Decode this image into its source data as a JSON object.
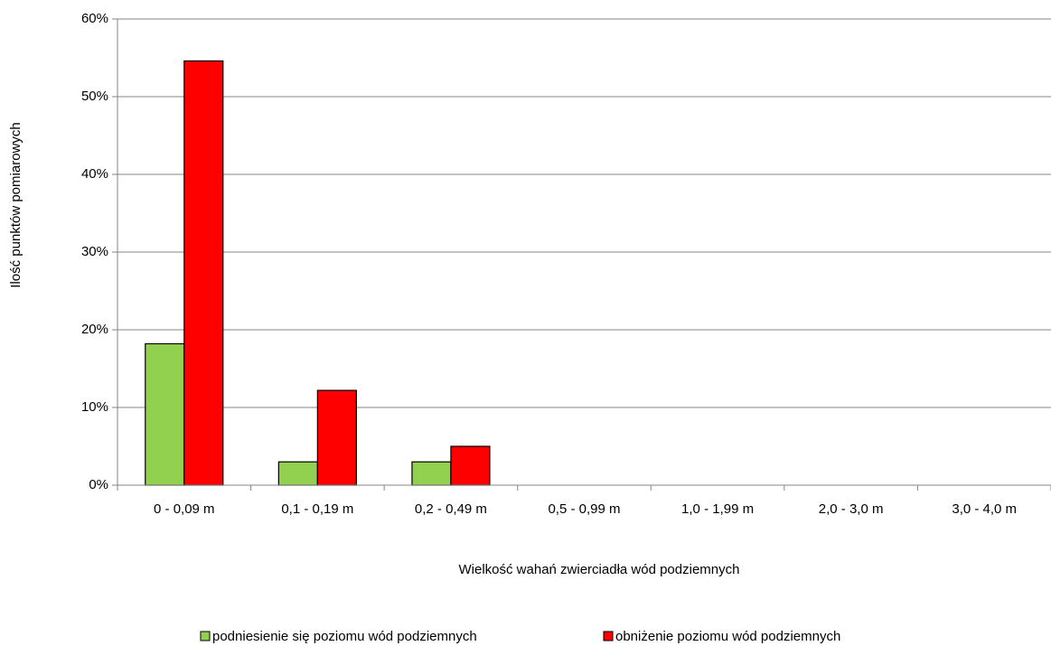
{
  "chart_data": {
    "type": "bar",
    "x_label": "Wielkość wahań zwierciadła wód podziemnych",
    "y_label": "Ilość  punktów pomiarowych",
    "categories": [
      "0 - 0,09 m",
      "0,1 - 0,19 m",
      "0,2 - 0,49 m",
      "0,5 - 0,99 m",
      "1,0 - 1,99 m",
      "2,0 - 3,0 m",
      "3,0 - 4,0 m"
    ],
    "series": [
      {
        "name": "podniesienie się poziomu wód podziemnych",
        "color": "#92d050",
        "values": [
          18.2,
          3,
          3,
          0,
          0,
          0,
          0
        ]
      },
      {
        "name": "obniżenie poziomu wód podziemnych",
        "color": "#ff0000",
        "values": [
          54.6,
          12.2,
          5,
          0,
          0,
          0,
          0
        ]
      }
    ],
    "ylim": [
      0,
      60
    ],
    "yticks": [
      {
        "value": 0,
        "label": "0%"
      },
      {
        "value": 10,
        "label": "10%"
      },
      {
        "value": 20,
        "label": "20%"
      },
      {
        "value": 30,
        "label": "30%"
      },
      {
        "value": 40,
        "label": "40%"
      },
      {
        "value": 50,
        "label": "50%"
      },
      {
        "value": 60,
        "label": "60%"
      }
    ],
    "grid": true,
    "legend": "bottom"
  }
}
